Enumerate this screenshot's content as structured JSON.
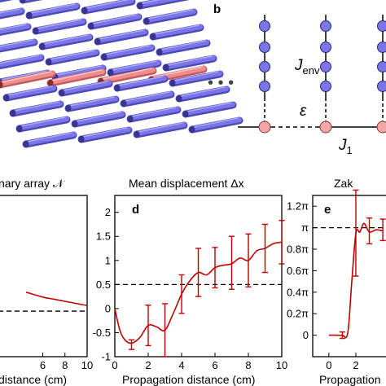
{
  "panel_labels": {
    "b": "b",
    "d": "d",
    "e": "e"
  },
  "schematic": {
    "j_env": "J",
    "j_env_sub": "env",
    "epsilon": "ε",
    "j1": "J",
    "j1_sub": "1",
    "ellipsis": "• • •",
    "colors": {
      "rod_blue": "#7b76e8",
      "rod_red": "#f08c8c",
      "site_blue": "#7b76e8",
      "site_red": "#f4a6a6"
    }
  },
  "titles": {
    "c": "nary array 𝒩",
    "d": "Mean displacement Δx",
    "e": "Zak"
  },
  "xlabels": {
    "c": "distance (cm)",
    "d": "Propagation distance (cm)",
    "e": "Propagation"
  },
  "chart_data": [
    {
      "panel": "c",
      "type": "line",
      "title": "nary array 𝒩",
      "xlabel": "distance (cm)",
      "xticks": [
        "6",
        "8",
        "10"
      ],
      "series": [
        {
          "x": [
            4.5,
            6,
            7,
            8,
            9,
            10
          ],
          "y": [
            0.92,
            0.85,
            0.82,
            0.79,
            0.76,
            0.73
          ]
        }
      ],
      "reference_line": 0.65,
      "color": "#c00000"
    },
    {
      "panel": "d",
      "type": "line",
      "title": "Mean displacement Δx",
      "xlabel": "Propagation distance (cm)",
      "xlim": [
        0,
        10
      ],
      "ylim": [
        -1.0,
        2.35
      ],
      "xticks": [
        "0",
        "2",
        "4",
        "6",
        "8",
        "10"
      ],
      "yticks": [
        "-1",
        "-0.5",
        "0",
        "0.5",
        "1",
        "1.5",
        "2"
      ],
      "reference_line": 0.5,
      "color": "#c00000",
      "series": [
        {
          "x": [
            0,
            0.3,
            0.6,
            1.0,
            1.5,
            2.0,
            2.5,
            3.0,
            3.5,
            4.0,
            4.5,
            5.0,
            5.5,
            6.0,
            6.5,
            7.0,
            7.5,
            8.0,
            8.5,
            9.0,
            9.5,
            10.0
          ],
          "y": [
            0.0,
            -0.45,
            -0.65,
            -0.72,
            -0.6,
            -0.35,
            -0.38,
            -0.45,
            -0.1,
            0.3,
            0.58,
            0.75,
            0.7,
            0.85,
            0.9,
            0.93,
            1.05,
            1.0,
            1.2,
            1.25,
            1.35,
            1.38
          ]
        }
      ],
      "error_bars": {
        "x": [
          1,
          2,
          3,
          4,
          5,
          6,
          7,
          8,
          9,
          10
        ],
        "y": [
          -0.75,
          -0.35,
          -0.45,
          0.3,
          0.75,
          0.85,
          0.95,
          1.0,
          1.25,
          1.38
        ],
        "err": [
          0.1,
          0.42,
          0.55,
          0.4,
          0.5,
          0.42,
          0.55,
          0.55,
          0.5,
          0.45
        ]
      }
    },
    {
      "panel": "e",
      "type": "line",
      "title": "Zak",
      "xlabel": "Propagation",
      "xticks": [
        "0",
        "2"
      ],
      "yticks": [
        "0",
        "0.2π",
        "0.4π",
        "0.6π",
        "0.8π",
        "π",
        "1.2π"
      ],
      "ylim": [
        -0.2,
        1.3
      ],
      "reference_line": 1.0,
      "color": "#c00000",
      "series": [
        {
          "x": [
            0,
            0.5,
            1.0,
            1.4,
            1.7,
            2.0,
            2.3,
            2.6,
            3.0,
            3.5,
            4.0
          ],
          "y": [
            0.0,
            0.0,
            0.0,
            0.02,
            0.5,
            0.95,
            0.96,
            1.04,
            0.96,
            0.98,
            0.97
          ]
        }
      ],
      "error_bars": {
        "x": [
          1,
          2,
          3,
          4
        ],
        "y": [
          0.0,
          0.95,
          0.97,
          0.98
        ],
        "err": [
          0.03,
          0.4,
          0.12,
          0.1
        ]
      }
    }
  ]
}
